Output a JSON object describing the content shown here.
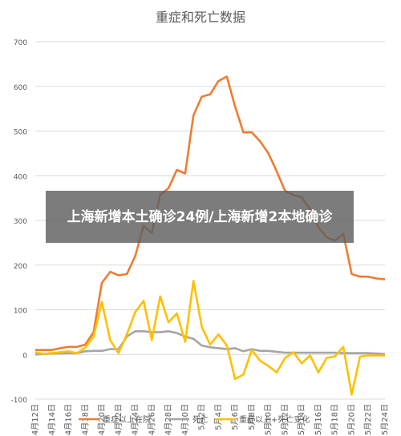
{
  "chart_data": {
    "type": "line",
    "title": "重症和死亡数据",
    "ylim": [
      -100,
      700
    ],
    "yticks": [
      -100,
      0,
      100,
      200,
      300,
      400,
      500,
      600,
      700
    ],
    "x_labels": [
      "4月12日",
      "4月14日",
      "4月16日",
      "4月18日",
      "4月20日",
      "4月22日",
      "4月24日",
      "4月26日",
      "4月28日",
      "4月30日",
      "5月2日",
      "5月4日",
      "5月6日",
      "5月8日",
      "5月10日",
      "5月12日",
      "5月14日",
      "5月16日",
      "5月18日",
      "5月20日",
      "5月22日",
      "5月24日"
    ],
    "x_dates": [
      "2022-04-12",
      "2022-04-13",
      "2022-04-14",
      "2022-04-15",
      "2022-04-16",
      "2022-04-17",
      "2022-04-18",
      "2022-04-19",
      "2022-04-20",
      "2022-04-21",
      "2022-04-22",
      "2022-04-23",
      "2022-04-24",
      "2022-04-25",
      "2022-04-26",
      "2022-04-27",
      "2022-04-28",
      "2022-04-29",
      "2022-04-30",
      "2022-05-01",
      "2022-05-02",
      "2022-05-03",
      "2022-05-04",
      "2022-05-05",
      "2022-05-06",
      "2022-05-07",
      "2022-05-08",
      "2022-05-09",
      "2022-05-10",
      "2022-05-11",
      "2022-05-12",
      "2022-05-13",
      "2022-05-14",
      "2022-05-15",
      "2022-05-16",
      "2022-05-17",
      "2022-05-18",
      "2022-05-19",
      "2022-05-20",
      "2022-05-21",
      "2022-05-22",
      "2022-05-23",
      "2022-05-24"
    ],
    "legend_position": "bottom",
    "series": [
      {
        "name": "重症以上在院",
        "color": "#ED7D31",
        "values": [
          10,
          10,
          10,
          14,
          17,
          17,
          22,
          50,
          160,
          185,
          177,
          180,
          220,
          288,
          272,
          357,
          372,
          413,
          405,
          535,
          577,
          582,
          612,
          622,
          555,
          497,
          497,
          477,
          450,
          410,
          366,
          357,
          352,
          325,
          285,
          262,
          255,
          270,
          180,
          174,
          174,
          170,
          168
        ]
      },
      {
        "name": "死亡",
        "color": "#A5A5A5",
        "values": [
          0,
          1,
          2,
          2,
          3,
          3,
          7,
          8,
          8,
          12,
          12,
          40,
          52,
          52,
          50,
          50,
          52,
          48,
          40,
          35,
          20,
          16,
          14,
          12,
          14,
          7,
          12,
          8,
          8,
          6,
          4,
          4,
          4,
          4,
          4,
          4,
          4,
          3,
          3,
          3,
          3,
          2,
          1
        ]
      },
      {
        "name": "重症以上+死亡变化",
        "color": "#FFC000",
        "values": [
          5,
          1,
          3,
          5,
          7,
          3,
          15,
          40,
          118,
          32,
          3,
          45,
          95,
          120,
          32,
          130,
          72,
          92,
          28,
          165,
          62,
          22,
          45,
          20,
          -55,
          -45,
          10,
          -14,
          -26,
          -40,
          -8,
          5,
          -20,
          -2,
          -40,
          -8,
          -4,
          17,
          -90,
          -5,
          -2,
          -2,
          -2
        ]
      }
    ]
  },
  "overlay": {
    "text": "上海新增本土确诊24例/上海新增2本地确诊"
  }
}
